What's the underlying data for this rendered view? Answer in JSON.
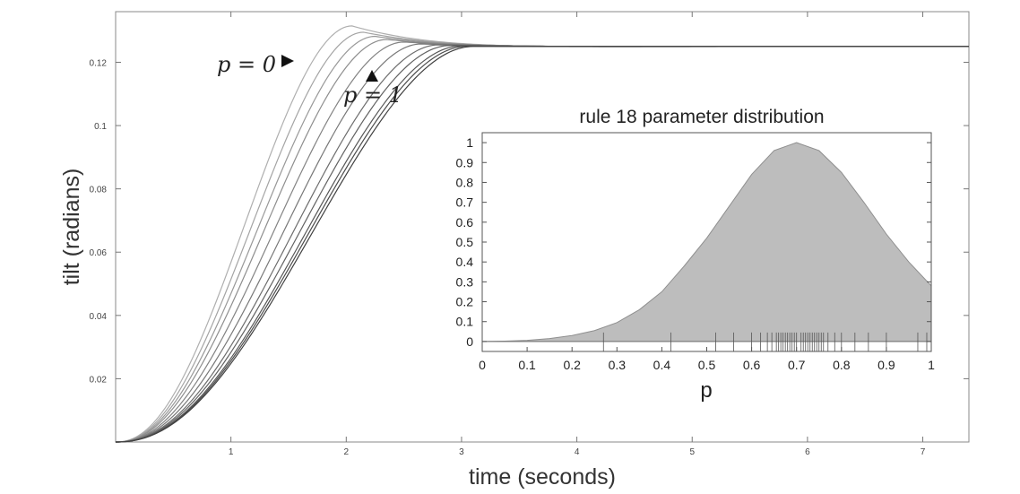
{
  "chart_data": [
    {
      "type": "line",
      "xlabel": "time (seconds)",
      "ylabel": "tilt (radians)",
      "xlim": [
        0,
        7.4
      ],
      "ylim": [
        0,
        0.136
      ],
      "x_ticks": [
        1,
        2,
        3,
        4,
        5,
        6,
        7
      ],
      "y_ticks": [
        0.02,
        0.04,
        0.06,
        0.08,
        0.1,
        0.12
      ],
      "x_tick_labels": [
        "1",
        "2",
        "3",
        "4",
        "5",
        "6",
        "7"
      ],
      "y_tick_labels": [
        "0.02",
        "0.04",
        "0.06",
        "0.08",
        "0.1",
        "0.12"
      ],
      "grid": false,
      "steady_state": 0.125,
      "curves": [
        {
          "p": 0.0,
          "peak": 0.1315,
          "peak_time": 2.05
        },
        {
          "p": 0.1,
          "peak": 0.1295,
          "peak_time": 2.15
        },
        {
          "p": 0.2,
          "peak": 0.1282,
          "peak_time": 2.25
        },
        {
          "p": 0.3,
          "peak": 0.1272,
          "peak_time": 2.35
        },
        {
          "p": 0.4,
          "peak": 0.1264,
          "peak_time": 2.5
        },
        {
          "p": 0.5,
          "peak": 0.1258,
          "peak_time": 2.65
        },
        {
          "p": 0.6,
          "peak": 0.1255,
          "peak_time": 2.8
        },
        {
          "p": 0.7,
          "peak": 0.1253,
          "peak_time": 2.9
        },
        {
          "p": 0.8,
          "peak": 0.1252,
          "peak_time": 3.0
        },
        {
          "p": 0.9,
          "peak": 0.1251,
          "peak_time": 3.05
        },
        {
          "p": 1.0,
          "peak": 0.125,
          "peak_time": 3.1
        }
      ],
      "annotations": [
        {
          "text": "p = 0",
          "x": 1.45,
          "y": 0.1255
        },
        {
          "text": "p = 1",
          "x": 2.25,
          "y": 0.121
        }
      ]
    },
    {
      "type": "area",
      "title": "rule 18 parameter distribution",
      "xlabel": "p",
      "ylabel": "",
      "xlim": [
        0,
        1
      ],
      "ylim": [
        -0.05,
        1.05
      ],
      "x_ticks": [
        0,
        0.1,
        0.2,
        0.3,
        0.4,
        0.5,
        0.6,
        0.7,
        0.8,
        0.9,
        1
      ],
      "y_ticks": [
        0,
        0.1,
        0.2,
        0.3,
        0.4,
        0.5,
        0.6,
        0.7,
        0.8,
        0.9,
        1
      ],
      "x_tick_labels": [
        "0",
        "0.1",
        "0.2",
        "0.3",
        "0.4",
        "0.5",
        "0.6",
        "0.7",
        "0.8",
        "0.9",
        "1"
      ],
      "y_tick_labels": [
        "0",
        "0.1",
        "0.2",
        "0.3",
        "0.4",
        "0.5",
        "0.6",
        "0.7",
        "0.8",
        "0.9",
        "1"
      ],
      "grid": false,
      "x": [
        0,
        0.05,
        0.1,
        0.15,
        0.2,
        0.25,
        0.3,
        0.35,
        0.4,
        0.45,
        0.5,
        0.55,
        0.6,
        0.65,
        0.7,
        0.75,
        0.8,
        0.85,
        0.9,
        0.95,
        1
      ],
      "density": [
        0.0,
        0.002,
        0.006,
        0.015,
        0.03,
        0.055,
        0.095,
        0.16,
        0.25,
        0.38,
        0.52,
        0.68,
        0.84,
        0.96,
        1.0,
        0.96,
        0.85,
        0.7,
        0.54,
        0.4,
        0.28
      ],
      "rug_samples": [
        0.27,
        0.42,
        0.52,
        0.56,
        0.6,
        0.62,
        0.635,
        0.645,
        0.655,
        0.66,
        0.665,
        0.67,
        0.675,
        0.68,
        0.685,
        0.69,
        0.695,
        0.7,
        0.71,
        0.715,
        0.72,
        0.725,
        0.73,
        0.735,
        0.74,
        0.745,
        0.75,
        0.755,
        0.76,
        0.77,
        0.785,
        0.8,
        0.83,
        0.86,
        0.9,
        0.97,
        0.99
      ]
    }
  ]
}
